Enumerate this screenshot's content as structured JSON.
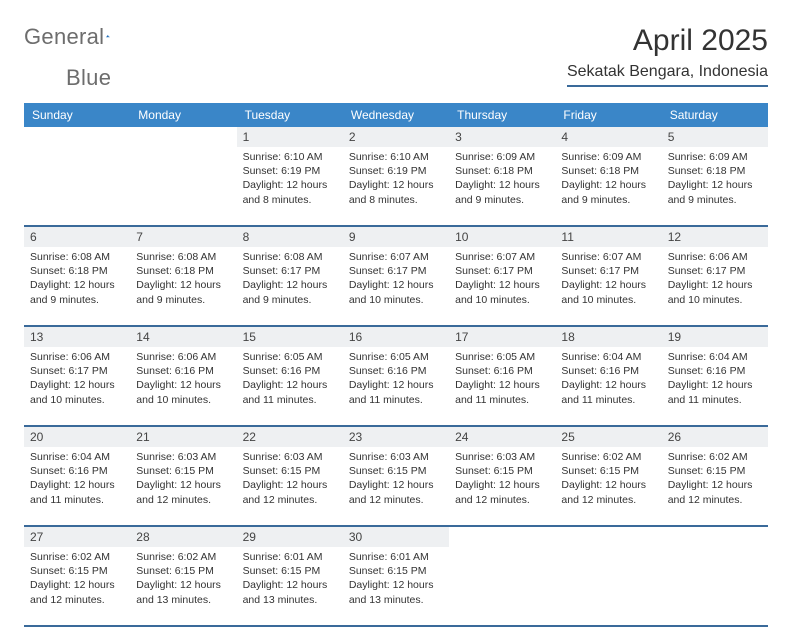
{
  "brand": {
    "name_part1": "General",
    "name_part2": "Blue"
  },
  "header": {
    "title": "April 2025",
    "location": "Sekatak Bengara, Indonesia"
  },
  "colors": {
    "header_blue": "#3a86c8",
    "rule_blue": "#3a6a9a",
    "cell_bg": "#eef0f2",
    "logo_grey": "#6d6d6d",
    "logo_blue": "#1e6bb8"
  },
  "weekdays": [
    "Sunday",
    "Monday",
    "Tuesday",
    "Wednesday",
    "Thursday",
    "Friday",
    "Saturday"
  ],
  "weeks": [
    [
      null,
      null,
      {
        "n": "1",
        "sunrise": "6:10 AM",
        "sunset": "6:19 PM",
        "daylight": "12 hours and 8 minutes."
      },
      {
        "n": "2",
        "sunrise": "6:10 AM",
        "sunset": "6:19 PM",
        "daylight": "12 hours and 8 minutes."
      },
      {
        "n": "3",
        "sunrise": "6:09 AM",
        "sunset": "6:18 PM",
        "daylight": "12 hours and 9 minutes."
      },
      {
        "n": "4",
        "sunrise": "6:09 AM",
        "sunset": "6:18 PM",
        "daylight": "12 hours and 9 minutes."
      },
      {
        "n": "5",
        "sunrise": "6:09 AM",
        "sunset": "6:18 PM",
        "daylight": "12 hours and 9 minutes."
      }
    ],
    [
      {
        "n": "6",
        "sunrise": "6:08 AM",
        "sunset": "6:18 PM",
        "daylight": "12 hours and 9 minutes."
      },
      {
        "n": "7",
        "sunrise": "6:08 AM",
        "sunset": "6:18 PM",
        "daylight": "12 hours and 9 minutes."
      },
      {
        "n": "8",
        "sunrise": "6:08 AM",
        "sunset": "6:17 PM",
        "daylight": "12 hours and 9 minutes."
      },
      {
        "n": "9",
        "sunrise": "6:07 AM",
        "sunset": "6:17 PM",
        "daylight": "12 hours and 10 minutes."
      },
      {
        "n": "10",
        "sunrise": "6:07 AM",
        "sunset": "6:17 PM",
        "daylight": "12 hours and 10 minutes."
      },
      {
        "n": "11",
        "sunrise": "6:07 AM",
        "sunset": "6:17 PM",
        "daylight": "12 hours and 10 minutes."
      },
      {
        "n": "12",
        "sunrise": "6:06 AM",
        "sunset": "6:17 PM",
        "daylight": "12 hours and 10 minutes."
      }
    ],
    [
      {
        "n": "13",
        "sunrise": "6:06 AM",
        "sunset": "6:17 PM",
        "daylight": "12 hours and 10 minutes."
      },
      {
        "n": "14",
        "sunrise": "6:06 AM",
        "sunset": "6:16 PM",
        "daylight": "12 hours and 10 minutes."
      },
      {
        "n": "15",
        "sunrise": "6:05 AM",
        "sunset": "6:16 PM",
        "daylight": "12 hours and 11 minutes."
      },
      {
        "n": "16",
        "sunrise": "6:05 AM",
        "sunset": "6:16 PM",
        "daylight": "12 hours and 11 minutes."
      },
      {
        "n": "17",
        "sunrise": "6:05 AM",
        "sunset": "6:16 PM",
        "daylight": "12 hours and 11 minutes."
      },
      {
        "n": "18",
        "sunrise": "6:04 AM",
        "sunset": "6:16 PM",
        "daylight": "12 hours and 11 minutes."
      },
      {
        "n": "19",
        "sunrise": "6:04 AM",
        "sunset": "6:16 PM",
        "daylight": "12 hours and 11 minutes."
      }
    ],
    [
      {
        "n": "20",
        "sunrise": "6:04 AM",
        "sunset": "6:16 PM",
        "daylight": "12 hours and 11 minutes."
      },
      {
        "n": "21",
        "sunrise": "6:03 AM",
        "sunset": "6:15 PM",
        "daylight": "12 hours and 12 minutes."
      },
      {
        "n": "22",
        "sunrise": "6:03 AM",
        "sunset": "6:15 PM",
        "daylight": "12 hours and 12 minutes."
      },
      {
        "n": "23",
        "sunrise": "6:03 AM",
        "sunset": "6:15 PM",
        "daylight": "12 hours and 12 minutes."
      },
      {
        "n": "24",
        "sunrise": "6:03 AM",
        "sunset": "6:15 PM",
        "daylight": "12 hours and 12 minutes."
      },
      {
        "n": "25",
        "sunrise": "6:02 AM",
        "sunset": "6:15 PM",
        "daylight": "12 hours and 12 minutes."
      },
      {
        "n": "26",
        "sunrise": "6:02 AM",
        "sunset": "6:15 PM",
        "daylight": "12 hours and 12 minutes."
      }
    ],
    [
      {
        "n": "27",
        "sunrise": "6:02 AM",
        "sunset": "6:15 PM",
        "daylight": "12 hours and 12 minutes."
      },
      {
        "n": "28",
        "sunrise": "6:02 AM",
        "sunset": "6:15 PM",
        "daylight": "12 hours and 13 minutes."
      },
      {
        "n": "29",
        "sunrise": "6:01 AM",
        "sunset": "6:15 PM",
        "daylight": "12 hours and 13 minutes."
      },
      {
        "n": "30",
        "sunrise": "6:01 AM",
        "sunset": "6:15 PM",
        "daylight": "12 hours and 13 minutes."
      },
      null,
      null,
      null
    ]
  ],
  "labels": {
    "sunrise": "Sunrise: ",
    "sunset": "Sunset: ",
    "daylight": "Daylight: "
  }
}
